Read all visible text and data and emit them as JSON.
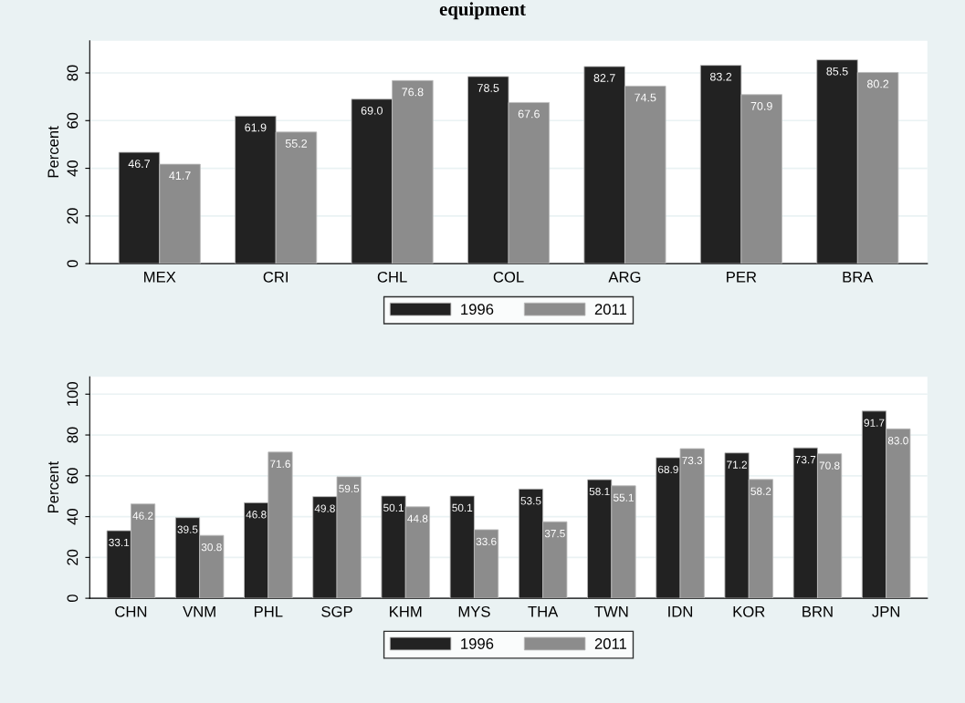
{
  "chart_data": [
    {
      "type": "bar",
      "title": "equipment",
      "ylabel": "Percent",
      "categories": [
        "MEX",
        "CRI",
        "CHL",
        "COL",
        "ARG",
        "PER",
        "BRA"
      ],
      "series": [
        {
          "name": "1996",
          "color": "#222222",
          "values": [
            46.7,
            61.9,
            69.0,
            78.5,
            82.7,
            83.2,
            85.5
          ],
          "value_labels": [
            "46.7",
            "61.9",
            "69.0",
            "78.5",
            "82.7",
            "83.2",
            "85.5"
          ]
        },
        {
          "name": "2011",
          "color": "#8c8c8c",
          "values": [
            41.7,
            55.2,
            76.8,
            67.6,
            74.5,
            70.9,
            80.2
          ],
          "value_labels": [
            "41.7",
            "55.2",
            "76.8",
            "67.6",
            "74.5",
            "70.9",
            "80.2"
          ]
        }
      ],
      "ylim": [
        0,
        93.5
      ],
      "yticks": [
        0,
        20,
        40,
        60,
        80
      ],
      "grid": "y",
      "legend": "bottom"
    },
    {
      "type": "bar",
      "ylabel": "Percent",
      "categories": [
        "CHN",
        "VNM",
        "PHL",
        "SGP",
        "KHM",
        "MYS",
        "THA",
        "TWN",
        "IDN",
        "KOR",
        "BRN",
        "JPN"
      ],
      "series": [
        {
          "name": "1996",
          "color": "#222222",
          "values": [
            33.1,
            39.5,
            46.8,
            49.8,
            50.1,
            50.1,
            53.5,
            58.1,
            68.9,
            71.2,
            73.7,
            91.7
          ],
          "value_labels": [
            "33.1",
            "39.5",
            "46.8",
            "49.8",
            "50.1",
            "50.1",
            "53.5",
            "58.1",
            "68.9",
            "71.2",
            "73.7",
            "91.7"
          ]
        },
        {
          "name": "2011",
          "color": "#8c8c8c",
          "values": [
            46.2,
            30.8,
            71.6,
            59.5,
            44.8,
            33.6,
            37.5,
            55.1,
            73.3,
            58.2,
            70.8,
            83.0
          ],
          "value_labels": [
            "46.2",
            "30.8",
            "71.6",
            "59.5",
            "44.8",
            "33.6",
            "37.5",
            "55.1",
            "73.3",
            "58.2",
            "70.8",
            "83.0"
          ]
        }
      ],
      "ylim": [
        0,
        108.5
      ],
      "yticks": [
        0,
        20,
        40,
        60,
        80,
        100
      ],
      "grid": "y",
      "legend": "bottom"
    }
  ]
}
